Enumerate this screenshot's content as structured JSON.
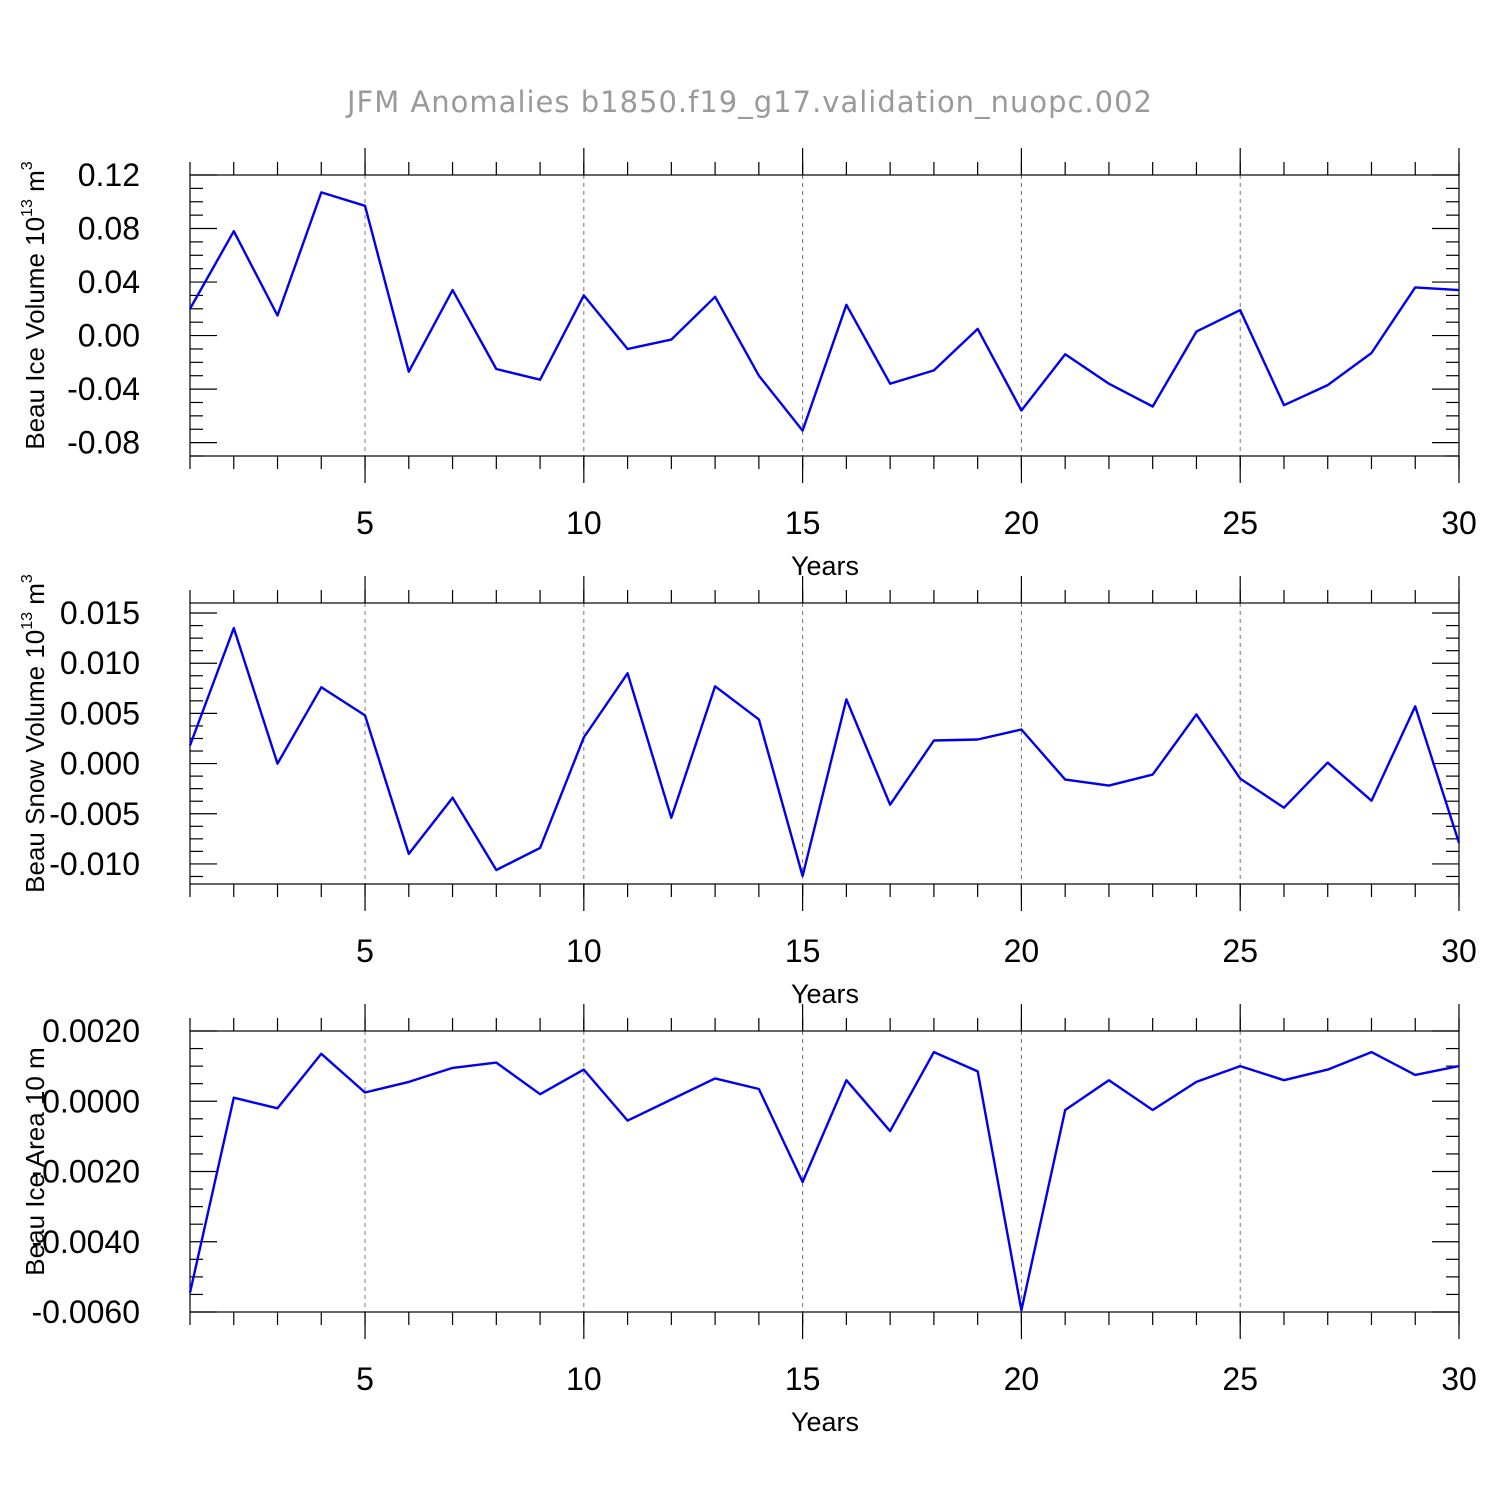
{
  "title": "JFM Anomalies b1850.f19_g17.validation_nuopc.002",
  "colors": {
    "series": "#0000ee",
    "grid": "#777777",
    "title": "#9a9a9a"
  },
  "chart_data": [
    {
      "type": "line",
      "ylabel": "Beau Ice Volume 10",
      "ylabel_exp": "13",
      "ylabel_unit": " m",
      "ylabel_unit_exp": "3",
      "xlabel": "Years",
      "xlim": [
        1,
        30
      ],
      "ylim": [
        -0.09,
        0.12
      ],
      "x_ticks": [
        5,
        10,
        15,
        20,
        25,
        30
      ],
      "x_tick_labels": [
        "5",
        "10",
        "15",
        "20",
        "25",
        "30"
      ],
      "y_ticks": [
        0.12,
        0.08,
        0.04,
        0.0,
        -0.04,
        -0.08
      ],
      "y_tick_labels": [
        "0.12",
        "0.08",
        "0.04",
        "0.00",
        "-0.04",
        "-0.08"
      ],
      "grid": "vertical dashed at major x ticks",
      "x": [
        1,
        2,
        3,
        4,
        5,
        6,
        7,
        8,
        9,
        10,
        11,
        12,
        13,
        14,
        15,
        16,
        17,
        18,
        19,
        20,
        21,
        22,
        23,
        24,
        25,
        26,
        27,
        28,
        29,
        30
      ],
      "values": [
        0.02,
        0.078,
        0.015,
        0.107,
        0.097,
        -0.027,
        0.034,
        -0.025,
        -0.033,
        0.03,
        -0.01,
        -0.003,
        0.029,
        -0.03,
        -0.071,
        0.023,
        -0.036,
        -0.026,
        0.005,
        -0.056,
        -0.014,
        -0.036,
        -0.053,
        0.003,
        0.019,
        -0.052,
        -0.037,
        -0.013,
        0.036,
        0.034
      ]
    },
    {
      "type": "line",
      "ylabel": "Beau Snow Volume 10",
      "ylabel_exp": "13",
      "ylabel_unit": " m",
      "ylabel_unit_exp": "3",
      "xlabel": "Years",
      "xlim": [
        1,
        30
      ],
      "ylim": [
        -0.012,
        0.016
      ],
      "x_ticks": [
        5,
        10,
        15,
        20,
        25,
        30
      ],
      "x_tick_labels": [
        "5",
        "10",
        "15",
        "20",
        "25",
        "30"
      ],
      "y_ticks": [
        0.015,
        0.01,
        0.005,
        0.0,
        -0.005,
        -0.01
      ],
      "y_tick_labels": [
        "0.015",
        "0.010",
        "0.005",
        "0.000",
        "-0.005",
        "-0.010"
      ],
      "grid": "vertical dashed at major x ticks",
      "x": [
        1,
        2,
        3,
        4,
        5,
        6,
        7,
        8,
        9,
        10,
        11,
        12,
        13,
        14,
        15,
        16,
        17,
        18,
        19,
        20,
        21,
        22,
        23,
        24,
        25,
        26,
        27,
        28,
        29,
        30
      ],
      "values": [
        0.0018,
        0.0135,
        0.0,
        0.0076,
        0.0048,
        -0.009,
        -0.0034,
        -0.0106,
        -0.0084,
        0.0026,
        0.009,
        -0.0054,
        0.0077,
        0.0044,
        -0.0112,
        0.0064,
        -0.0041,
        0.0023,
        0.0024,
        0.0034,
        -0.0016,
        -0.0022,
        -0.0011,
        0.0049,
        -0.0015,
        -0.0044,
        0.0001,
        -0.0037,
        0.0057,
        -0.0079
      ]
    },
    {
      "type": "line",
      "ylabel": "Beau Ice Area 10",
      "ylabel_exp": "",
      "ylabel_unit": " m",
      "ylabel_unit_exp": "",
      "xlabel": "Years",
      "xlim": [
        1,
        30
      ],
      "ylim": [
        -0.006,
        0.002
      ],
      "x_ticks": [
        5,
        10,
        15,
        20,
        25,
        30
      ],
      "x_tick_labels": [
        "5",
        "10",
        "15",
        "20",
        "25",
        "30"
      ],
      "y_ticks": [
        0.002,
        0.0,
        -0.002,
        -0.004,
        -0.006
      ],
      "y_tick_labels": [
        "0.0020",
        "0.0000",
        "-0.0020",
        "-0.0040",
        "-0.0060"
      ],
      "grid": "vertical dashed at major x ticks",
      "x": [
        1,
        2,
        3,
        4,
        5,
        6,
        7,
        8,
        9,
        10,
        11,
        12,
        13,
        14,
        15,
        16,
        17,
        18,
        19,
        20,
        21,
        22,
        23,
        24,
        25,
        26,
        27,
        28,
        29,
        30
      ],
      "values": [
        -0.00545,
        0.0001,
        -0.0002,
        0.00135,
        0.00025,
        0.00055,
        0.00095,
        0.0011,
        0.0002,
        0.0009,
        -0.00055,
        5e-05,
        0.00065,
        0.00035,
        -0.0023,
        0.0006,
        -0.00085,
        0.0014,
        0.00085,
        -0.00595,
        -0.00025,
        0.0006,
        -0.00025,
        0.00055,
        0.001,
        0.0006,
        0.0009,
        0.0014,
        0.00075,
        0.001
      ]
    }
  ]
}
